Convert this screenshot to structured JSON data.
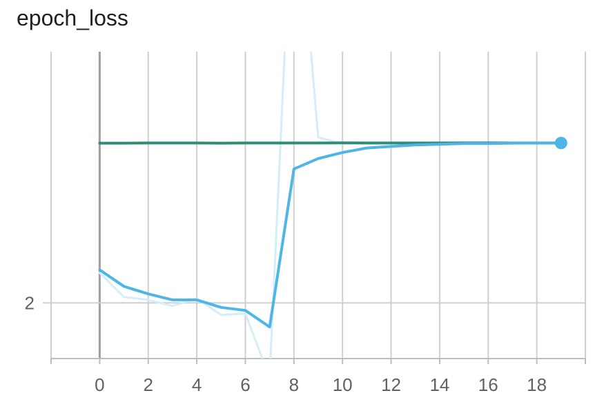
{
  "title": "epoch_loss",
  "chart_data": {
    "type": "line",
    "title": "epoch_loss",
    "xlabel": "",
    "ylabel": "",
    "x_ticks": [
      0,
      2,
      4,
      6,
      8,
      10,
      12,
      14,
      16,
      18
    ],
    "y_ticks": [
      2
    ],
    "xlim": [
      -2,
      20
    ],
    "ylim": [
      1.963,
      2.167
    ],
    "grid": true,
    "series": [
      {
        "role": "smoothed",
        "color": "#4db6e6",
        "x": [
          0,
          1,
          2,
          3,
          4,
          5,
          6,
          7,
          8,
          9,
          10,
          11,
          12,
          13,
          14,
          15,
          16,
          17,
          18,
          19
        ],
        "y": [
          2.022,
          2.011,
          2.006,
          2.002,
          2.002,
          1.997,
          1.995,
          1.984,
          2.089,
          2.096,
          2.1,
          2.103,
          2.104,
          2.105,
          2.1055,
          2.106,
          2.106,
          2.1062,
          2.1063,
          2.1063
        ]
      },
      {
        "role": "raw",
        "color": "#d3eef9",
        "x": [
          0,
          1,
          2,
          3,
          4,
          5,
          6,
          7,
          8,
          9,
          10,
          11,
          12,
          13,
          14,
          15,
          16,
          17,
          18,
          19
        ],
        "y": [
          2.02,
          2.004,
          2.002,
          1.998,
          2.003,
          1.992,
          1.993,
          1.95,
          2.3,
          2.11,
          2.106,
          2.106,
          2.106,
          2.106,
          2.106,
          2.106,
          2.106,
          2.106,
          2.106,
          2.106
        ]
      },
      {
        "role": "flat",
        "color": "#2e8b7a",
        "x": [
          0,
          1,
          2,
          3,
          4,
          5,
          6,
          7,
          8,
          9,
          10,
          11,
          12,
          13,
          14,
          15,
          16,
          17,
          18,
          19
        ],
        "y": [
          2.1062,
          2.1062,
          2.1063,
          2.1063,
          2.1063,
          2.1062,
          2.1063,
          2.1063,
          2.1063,
          2.1063,
          2.1064,
          2.1063,
          2.1063,
          2.1063,
          2.1063,
          2.1064,
          2.1064,
          2.1063,
          2.1063,
          2.1063
        ]
      }
    ],
    "endpoint_marker": {
      "x": 19,
      "y": 2.1063,
      "color": "#4db6e6"
    }
  }
}
